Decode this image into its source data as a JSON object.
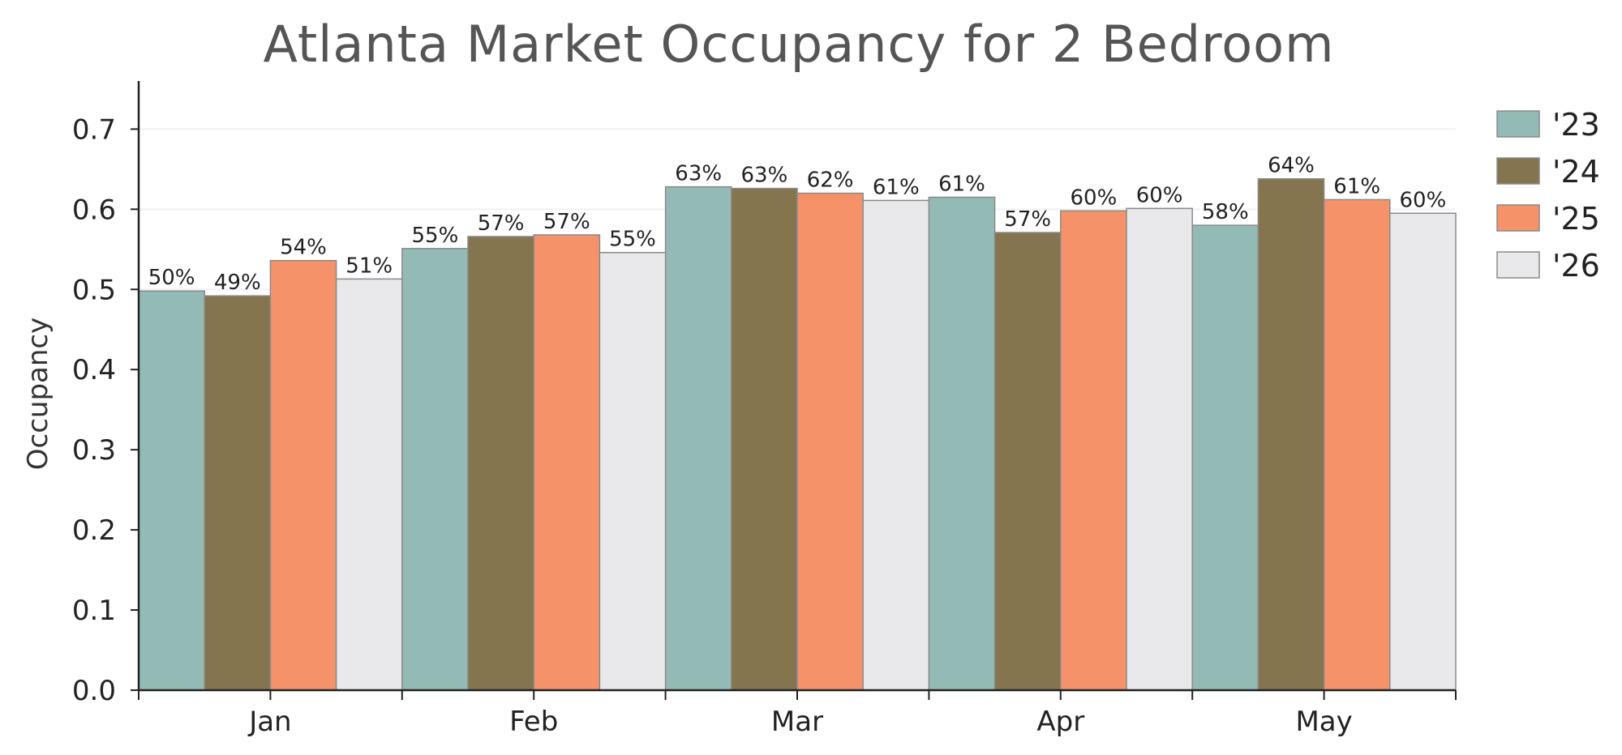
{
  "chart_data": {
    "type": "bar",
    "title": "Atlanta Market Occupancy for 2 Bedroom",
    "xlabel": "",
    "ylabel": "Occupancy",
    "categories": [
      "Jan",
      "Feb",
      "Mar",
      "Apr",
      "May"
    ],
    "ylim": [
      0,
      0.76
    ],
    "yticks": [
      0.0,
      0.1,
      0.2,
      0.3,
      0.4,
      0.5,
      0.6,
      0.7
    ],
    "ytick_labels": [
      "0.0",
      "0.1",
      "0.2",
      "0.3",
      "0.4",
      "0.5",
      "0.6",
      "0.7"
    ],
    "grid": "horizontal, faint",
    "legend_position": "top-right, outside plot",
    "series": [
      {
        "name": "'23",
        "color": "#94bab5",
        "values": [
          0.498,
          0.551,
          0.628,
          0.615,
          0.58
        ],
        "labels": [
          "50%",
          "55%",
          "63%",
          "61%",
          "58%"
        ]
      },
      {
        "name": "'24",
        "color": "#85754e",
        "values": [
          0.492,
          0.566,
          0.626,
          0.571,
          0.638
        ],
        "labels": [
          "49%",
          "57%",
          "63%",
          "57%",
          "64%"
        ]
      },
      {
        "name": "'25",
        "color": "#f5926a",
        "values": [
          0.536,
          0.568,
          0.62,
          0.598,
          0.612
        ],
        "labels": [
          "54%",
          "57%",
          "62%",
          "60%",
          "61%"
        ]
      },
      {
        "name": "'26",
        "color": "#e9e8eb",
        "values": [
          0.513,
          0.546,
          0.611,
          0.601,
          0.595
        ],
        "labels": [
          "51%",
          "55%",
          "61%",
          "60%",
          "60%"
        ]
      }
    ]
  }
}
